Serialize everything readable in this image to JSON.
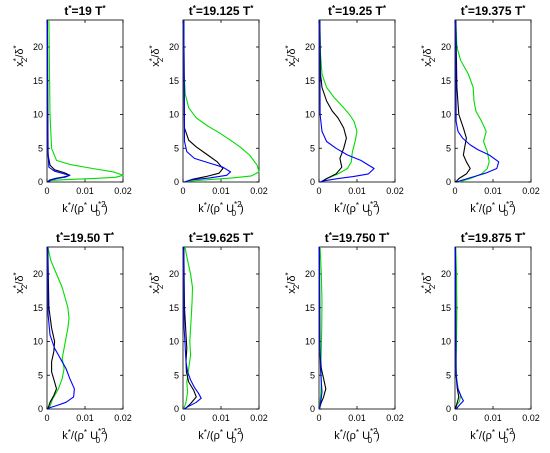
{
  "chart_data": [
    {
      "type": "line",
      "title": {
        "pre": "t",
        "sup1": "*",
        "mid": "=19 T",
        "sup2": "*"
      },
      "xlim": [
        0,
        0.02
      ],
      "ylim": [
        0,
        24
      ],
      "xticks": [
        "0",
        "0.01",
        "0.02"
      ],
      "yticks": [
        "0",
        "5",
        "10",
        "15",
        "20"
      ],
      "xlabel": {
        "k": "k",
        "s1": "*",
        "a": "/(",
        "rho": "ρ",
        "s2": "*",
        "b": " U",
        "sup3": "*2",
        "sub": "0",
        "c": ")"
      },
      "ylabel": {
        "x": "x",
        "s1": "*",
        "sub": "2",
        "a": "/",
        "d": "δ",
        "s2": "*"
      },
      "series": [
        {
          "color": "#00dd00",
          "x": [
            0.0005,
            0.0008,
            0.0012,
            0.0025,
            0.006,
            0.012,
            0.0175,
            0.02,
            0.018,
            0.012,
            0.005,
            0.0015,
            0.0005,
            0.0002,
            0.0001
          ],
          "y": [
            24,
            10,
            5,
            3.2,
            2.6,
            2.0,
            1.5,
            1.0,
            0.7,
            0.5,
            0.35,
            0.25,
            0.15,
            0.08,
            0
          ]
        },
        {
          "color": "#000000",
          "x": [
            0.0001,
            0.0002,
            0.0003,
            0.0008,
            0.002,
            0.0045,
            0.006,
            0.0045,
            0.002,
            0.0007,
            0.0001
          ],
          "y": [
            24,
            10,
            4,
            2.5,
            1.8,
            1.4,
            1.0,
            0.75,
            0.5,
            0.3,
            0
          ]
        },
        {
          "color": "#0000ff",
          "x": [
            0.0001,
            0.0002,
            0.0005,
            0.002,
            0.0045,
            0.006,
            0.005,
            0.0025,
            0.001,
            0.0002
          ],
          "y": [
            24,
            5,
            2.2,
            1.6,
            1.2,
            1.0,
            0.75,
            0.5,
            0.3,
            0
          ]
        }
      ]
    },
    {
      "type": "line",
      "title": {
        "pre": "t",
        "sup1": "*",
        "mid": "=19.125 T",
        "sup2": "*"
      },
      "xlim": [
        0,
        0.02
      ],
      "ylim": [
        0,
        24
      ],
      "xticks": [
        "0",
        "0.01",
        "0.02"
      ],
      "yticks": [
        "0",
        "5",
        "10",
        "15",
        "20"
      ],
      "xlabel": {
        "k": "k",
        "s1": "*",
        "a": "/(",
        "rho": "ρ",
        "s2": "*",
        "b": " U",
        "sup3": "*2",
        "sub": "0",
        "c": ")"
      },
      "ylabel": {
        "x": "x",
        "s1": "*",
        "sub": "2",
        "a": "/",
        "d": "δ",
        "s2": "*"
      },
      "series": [
        {
          "color": "#00dd00",
          "x": [
            0.0002,
            0.0003,
            0.0006,
            0.0015,
            0.0035,
            0.0065,
            0.0095,
            0.0125,
            0.015,
            0.0175,
            0.0195,
            0.02,
            0.018,
            0.013,
            0.007,
            0.002,
            0.0005
          ],
          "y": [
            24,
            16,
            13,
            11,
            9.5,
            8.3,
            7.3,
            6.2,
            5.2,
            4.0,
            2.5,
            1.5,
            0.9,
            0.6,
            0.35,
            0.15,
            0
          ]
        },
        {
          "color": "#000000",
          "x": [
            0.0002,
            0.0004,
            0.0015,
            0.0035,
            0.0065,
            0.009,
            0.0105,
            0.0095,
            0.006,
            0.0025,
            0.0005
          ],
          "y": [
            24,
            8,
            6.2,
            5.2,
            4.0,
            3.0,
            2.0,
            1.3,
            0.8,
            0.4,
            0
          ]
        },
        {
          "color": "#0000ff",
          "x": [
            0.0002,
            0.0004,
            0.001,
            0.003,
            0.007,
            0.0105,
            0.0125,
            0.0115,
            0.007,
            0.002,
            0.0003
          ],
          "y": [
            24,
            6,
            4.5,
            3.5,
            2.8,
            2.2,
            1.5,
            1.0,
            0.6,
            0.3,
            0
          ]
        }
      ]
    },
    {
      "type": "line",
      "title": {
        "pre": "t",
        "sup1": "*",
        "mid": "=19.25 T",
        "sup2": "*"
      },
      "xlim": [
        0,
        0.02
      ],
      "ylim": [
        0,
        24
      ],
      "xticks": [
        "0",
        "0.01",
        "0.02"
      ],
      "yticks": [
        "0",
        "5",
        "10",
        "15",
        "20"
      ],
      "xlabel": {
        "k": "k",
        "s1": "*",
        "a": "/(",
        "rho": "ρ",
        "s2": "*",
        "b": " U",
        "sup3": "*2",
        "sub": "0",
        "c": ")"
      },
      "ylabel": {
        "x": "x",
        "s1": "*",
        "sub": "2",
        "a": "/",
        "d": "δ",
        "s2": "*"
      },
      "series": [
        {
          "color": "#00dd00",
          "x": [
            0.0002,
            0.0004,
            0.0008,
            0.002,
            0.004,
            0.0065,
            0.008,
            0.0092,
            0.01,
            0.0095,
            0.0088,
            0.0085,
            0.0075,
            0.005,
            0.002,
            0.0005
          ],
          "y": [
            24,
            19,
            16,
            14,
            12.5,
            11,
            10,
            9,
            7.5,
            6.0,
            4.5,
            3.0,
            2.0,
            1.2,
            0.5,
            0
          ]
        },
        {
          "color": "#000000",
          "x": [
            0.0002,
            0.0004,
            0.0008,
            0.002,
            0.0035,
            0.005,
            0.0065,
            0.0072,
            0.0065,
            0.0055,
            0.006,
            0.0045,
            0.002,
            0.0005
          ],
          "y": [
            24,
            16,
            14,
            12,
            10.5,
            9.5,
            8,
            6.5,
            5.0,
            3.5,
            2.2,
            1.2,
            0.5,
            0
          ]
        },
        {
          "color": "#0000ff",
          "x": [
            0.0002,
            0.0003,
            0.0008,
            0.002,
            0.0045,
            0.0075,
            0.011,
            0.0145,
            0.013,
            0.009,
            0.005,
            0.0015,
            0.0003
          ],
          "y": [
            24,
            10,
            7.5,
            6,
            5,
            4.0,
            3.2,
            2.0,
            1.2,
            0.8,
            0.5,
            0.2,
            0
          ]
        }
      ]
    },
    {
      "type": "line",
      "title": {
        "pre": "t",
        "sup1": "*",
        "mid": "=19.375 T",
        "sup2": "*"
      },
      "xlim": [
        0,
        0.02
      ],
      "ylim": [
        0,
        24
      ],
      "xticks": [
        "0",
        "0.01",
        "0.02"
      ],
      "yticks": [
        "0",
        "5",
        "10",
        "15",
        "20"
      ],
      "xlabel": {
        "k": "k",
        "s1": "*",
        "a": "/(",
        "rho": "ρ",
        "s2": "*",
        "b": " U",
        "sup3": "*2",
        "sub": "0",
        "c": ")"
      },
      "ylabel": {
        "x": "x",
        "s1": "*",
        "sub": "2",
        "a": "/",
        "d": "δ",
        "s2": "*"
      },
      "series": [
        {
          "color": "#00dd00",
          "x": [
            0.0002,
            0.0005,
            0.0015,
            0.0035,
            0.0048,
            0.005,
            0.0055,
            0.007,
            0.0082,
            0.0075,
            0.0085,
            0.009,
            0.0085,
            0.007,
            0.004,
            0.001
          ],
          "y": [
            24,
            20,
            18,
            16,
            14,
            12,
            10.5,
            9,
            7.5,
            6,
            4.5,
            3.0,
            2.0,
            1.2,
            0.5,
            0
          ]
        },
        {
          "color": "#000000",
          "x": [
            0.0002,
            0.0005,
            0.001,
            0.0022,
            0.003,
            0.0025,
            0.0022,
            0.003,
            0.004,
            0.003,
            0.001,
            0.0002
          ],
          "y": [
            24,
            14,
            10,
            8,
            6.5,
            5,
            4,
            3,
            2,
            1.2,
            0.5,
            0
          ]
        },
        {
          "color": "#0000ff",
          "x": [
            0.0002,
            0.0003,
            0.0008,
            0.002,
            0.004,
            0.006,
            0.009,
            0.0115,
            0.011,
            0.008,
            0.005,
            0.002,
            0.0004
          ],
          "y": [
            24,
            9,
            7.5,
            6.5,
            5.5,
            4.8,
            4.0,
            3.0,
            2.0,
            1.3,
            0.8,
            0.3,
            0
          ]
        }
      ]
    },
    {
      "type": "line",
      "title": {
        "pre": "t",
        "sup1": "*",
        "mid": "=19.50 T",
        "sup2": "*"
      },
      "xlim": [
        0,
        0.02
      ],
      "ylim": [
        0,
        24
      ],
      "xticks": [
        "0",
        "0.01",
        "0.02"
      ],
      "yticks": [
        "0",
        "5",
        "10",
        "15",
        "20"
      ],
      "xlabel": {
        "k": "k",
        "s1": "*",
        "a": "/(",
        "rho": "ρ",
        "s2": "*",
        "b": " U",
        "sup3": "*2",
        "sub": "0",
        "c": ")"
      },
      "ylabel": {
        "x": "x",
        "s1": "*",
        "sub": "2",
        "a": "/",
        "d": "δ",
        "s2": "*"
      },
      "series": [
        {
          "color": "#00dd00",
          "x": [
            0.0002,
            0.001,
            0.0025,
            0.004,
            0.005,
            0.0055,
            0.0058,
            0.0055,
            0.005,
            0.0045,
            0.004,
            0.0045,
            0.004,
            0.003,
            0.0015,
            0.0005
          ],
          "y": [
            24,
            22,
            20,
            18,
            16,
            15,
            13.5,
            12,
            10.5,
            9,
            7.5,
            6,
            4.5,
            3,
            1.5,
            0
          ]
        },
        {
          "color": "#000000",
          "x": [
            0.0002,
            0.0005,
            0.0012,
            0.002,
            0.0018,
            0.0012,
            0.0012,
            0.002,
            0.0025,
            0.0018,
            0.0008,
            0.0002
          ],
          "y": [
            24,
            15,
            12,
            10,
            8.5,
            7,
            5.5,
            4,
            3,
            2,
            1,
            0
          ]
        },
        {
          "color": "#0000ff",
          "x": [
            0.0002,
            0.0003,
            0.0008,
            0.002,
            0.003,
            0.004,
            0.005,
            0.006,
            0.0072,
            0.007,
            0.005,
            0.0025,
            0.0008,
            0.0002
          ],
          "y": [
            24,
            14,
            11,
            9,
            8,
            7,
            6,
            4.5,
            3,
            1.8,
            1.0,
            0.5,
            0.2,
            0
          ]
        }
      ]
    },
    {
      "type": "line",
      "title": {
        "pre": "t",
        "sup1": "*",
        "mid": "=19.625 T",
        "sup2": "*"
      },
      "xlim": [
        0,
        0.02
      ],
      "ylim": [
        0,
        24
      ],
      "xticks": [
        "0",
        "0.01",
        "0.02"
      ],
      "yticks": [
        "0",
        "5",
        "10",
        "15",
        "20"
      ],
      "xlabel": {
        "k": "k",
        "s1": "*",
        "a": "/(",
        "rho": "ρ",
        "s2": "*",
        "b": " U",
        "sup3": "*2",
        "sub": "0",
        "c": ")"
      },
      "ylabel": {
        "x": "x",
        "s1": "*",
        "sub": "2",
        "a": "/",
        "d": "δ",
        "s2": "*"
      },
      "series": [
        {
          "color": "#00dd00",
          "x": [
            0.0005,
            0.0012,
            0.002,
            0.0025,
            0.0024,
            0.0022,
            0.002,
            0.0018,
            0.002,
            0.0015,
            0.001,
            0.0012,
            0.0008,
            0.0002
          ],
          "y": [
            24,
            22,
            20,
            18,
            16,
            14,
            12,
            10,
            8,
            6,
            4,
            2.5,
            1,
            0
          ]
        },
        {
          "color": "#000000",
          "x": [
            0.0002,
            0.0004,
            0.0008,
            0.001,
            0.0008,
            0.0009,
            0.0015,
            0.0028,
            0.0035,
            0.002,
            0.0005
          ],
          "y": [
            24,
            15,
            11,
            9,
            7,
            5.5,
            4,
            2.8,
            1.8,
            0.8,
            0
          ]
        },
        {
          "color": "#0000ff",
          "x": [
            0.0002,
            0.0003,
            0.0006,
            0.0008,
            0.0012,
            0.002,
            0.003,
            0.004,
            0.0048,
            0.0035,
            0.0015,
            0.0003
          ],
          "y": [
            24,
            12,
            9,
            7,
            5.5,
            4.3,
            3.2,
            2.4,
            1.6,
            1.0,
            0.4,
            0
          ]
        }
      ]
    },
    {
      "type": "line",
      "title": {
        "pre": "t",
        "sup1": "*",
        "mid": "=19.750 T",
        "sup2": "*"
      },
      "xlim": [
        0,
        0.02
      ],
      "ylim": [
        0,
        24
      ],
      "xticks": [
        "0",
        "0.01",
        "0.02"
      ],
      "yticks": [
        "0",
        "5",
        "10",
        "15",
        "20"
      ],
      "xlabel": {
        "k": "k",
        "s1": "*",
        "a": "/(",
        "rho": "ρ",
        "s2": "*",
        "b": " U",
        "sup3": "*2",
        "sub": "0",
        "c": ")"
      },
      "ylabel": {
        "x": "x",
        "s1": "*",
        "sub": "2",
        "a": "/",
        "d": "δ",
        "s2": "*"
      },
      "series": [
        {
          "color": "#00dd00",
          "x": [
            0.0003,
            0.0006,
            0.0008,
            0.0007,
            0.0006,
            0.0005,
            0.0006,
            0.0005,
            0.0003,
            0.0001
          ],
          "y": [
            24,
            20,
            16,
            12,
            9,
            6,
            4,
            2.5,
            1,
            0
          ]
        },
        {
          "color": "#000000",
          "x": [
            0.0001,
            0.0002,
            0.0003,
            0.0006,
            0.0012,
            0.0018,
            0.0012,
            0.0005,
            0.0001
          ],
          "y": [
            24,
            12,
            8,
            6,
            4.5,
            3.0,
            1.8,
            0.8,
            0
          ]
        },
        {
          "color": "#0000ff",
          "x": [
            0.0001,
            0.0002,
            0.0004,
            0.0006,
            0.0008,
            0.0005,
            0.0001
          ],
          "y": [
            24,
            10,
            6,
            4,
            2.5,
            1.2,
            0
          ]
        }
      ]
    },
    {
      "type": "line",
      "title": {
        "pre": "t",
        "sup1": "*",
        "mid": "=19.875 T",
        "sup2": "*"
      },
      "xlim": [
        0,
        0.02
      ],
      "ylim": [
        0,
        24
      ],
      "xticks": [
        "0",
        "0.01",
        "0.02"
      ],
      "yticks": [
        "0",
        "5",
        "10",
        "15",
        "20"
      ],
      "xlabel": {
        "k": "k",
        "s1": "*",
        "a": "/(",
        "rho": "ρ",
        "s2": "*",
        "b": " U",
        "sup3": "*2",
        "sub": "0",
        "c": ")"
      },
      "ylabel": {
        "x": "x",
        "s1": "*",
        "sub": "2",
        "a": "/",
        "d": "δ",
        "s2": "*"
      },
      "series": [
        {
          "color": "#00dd00",
          "x": [
            0.0002,
            0.0004,
            0.0005,
            0.0004,
            0.0003,
            0.0005,
            0.0008,
            0.0015,
            0.0012,
            0.0005,
            0.0001
          ],
          "y": [
            24,
            20,
            15,
            10,
            6,
            4,
            3,
            2,
            1.2,
            0.6,
            0
          ]
        },
        {
          "color": "#000000",
          "x": [
            0.0001,
            0.0002,
            0.0003,
            0.0006,
            0.001,
            0.0005,
            0.0001
          ],
          "y": [
            24,
            10,
            5,
            3,
            1.8,
            0.8,
            0
          ]
        },
        {
          "color": "#0000ff",
          "x": [
            0.0001,
            0.0002,
            0.0003,
            0.0008,
            0.0015,
            0.0022,
            0.0012,
            0.0003
          ],
          "y": [
            24,
            10,
            5,
            3,
            2,
            1.2,
            0.6,
            0
          ]
        }
      ]
    }
  ]
}
